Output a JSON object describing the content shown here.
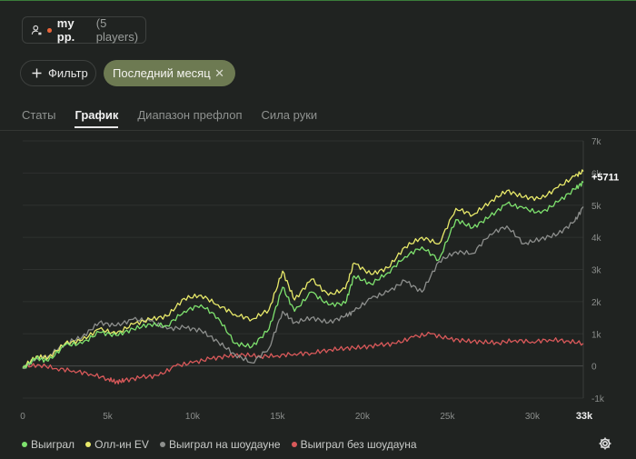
{
  "header": {
    "player_name": "my pp.",
    "player_count": "(5 players)"
  },
  "filters": {
    "filter_label": "Фильтр",
    "period_label": "Последний месяц",
    "close_glyph": "✕"
  },
  "tabs": [
    {
      "label": "Статы",
      "active": false
    },
    {
      "label": "График",
      "active": true
    },
    {
      "label": "Диапазон префлоп",
      "active": false
    },
    {
      "label": "Сила руки",
      "active": false
    }
  ],
  "colors": {
    "won": "#7ee26e",
    "allin_ev": "#e9ea6a",
    "showdown": "#8d8f8d",
    "non_showdown": "#d9595a"
  },
  "chart_data": {
    "type": "line",
    "x_ticks": [
      "0",
      "5k",
      "10k",
      "15k",
      "20k",
      "25k",
      "30k"
    ],
    "x_max_label": "33k",
    "xlim": [
      0,
      33000
    ],
    "y_ticks": [
      "7k",
      "6k",
      "5k",
      "4k",
      "3k",
      "2k",
      "1k",
      "0",
      "-1k"
    ],
    "ylim": [
      -1000,
      7000
    ],
    "end_label": "+5711",
    "series": [
      {
        "name": "Выиграл",
        "color": "#7ee26e",
        "x": [
          0,
          800,
          1500,
          2500,
          3500,
          4500,
          5500,
          6500,
          7500,
          8500,
          9500,
          10500,
          11500,
          12500,
          13500,
          14500,
          15300,
          16000,
          17000,
          18000,
          19000,
          19500,
          20500,
          21500,
          22500,
          23500,
          24500,
          25500,
          26500,
          27500,
          28500,
          29500,
          30500,
          31500,
          32500,
          33000
        ],
        "y": [
          -80,
          250,
          150,
          650,
          700,
          1050,
          950,
          1150,
          1300,
          1250,
          1700,
          1900,
          1500,
          700,
          600,
          1150,
          2450,
          1700,
          2300,
          1900,
          1950,
          2800,
          2550,
          2900,
          3400,
          3700,
          3300,
          4550,
          4300,
          4650,
          5050,
          4900,
          4750,
          5100,
          5500,
          5711
        ]
      },
      {
        "name": "Олл-ин EV",
        "color": "#e9ea6a",
        "x": [
          0,
          800,
          1500,
          2500,
          3500,
          4500,
          5500,
          6500,
          7500,
          8500,
          9500,
          10500,
          11500,
          12500,
          13500,
          14500,
          15300,
          16000,
          17000,
          18000,
          19000,
          19500,
          20500,
          21500,
          22500,
          23500,
          24500,
          25500,
          26500,
          27500,
          28500,
          29500,
          30500,
          31500,
          32500,
          33000
        ],
        "y": [
          -50,
          300,
          250,
          700,
          800,
          1150,
          1000,
          1300,
          1450,
          1550,
          2100,
          2200,
          1900,
          1600,
          1450,
          1750,
          2950,
          2050,
          2700,
          2200,
          2400,
          3200,
          2850,
          3050,
          3700,
          4000,
          3800,
          4900,
          4700,
          5100,
          5450,
          5250,
          5200,
          5550,
          5900,
          6050
        ]
      },
      {
        "name": "Выиграл на шоудауне",
        "color": "#8d8f8d",
        "x": [
          0,
          800,
          1500,
          2500,
          3500,
          4500,
          5500,
          6500,
          7500,
          8500,
          9500,
          10500,
          11500,
          12500,
          13500,
          14500,
          15300,
          16000,
          17000,
          18000,
          19000,
          19500,
          20500,
          21500,
          22500,
          23500,
          24500,
          25500,
          26500,
          27500,
          28500,
          29500,
          30500,
          31500,
          32500,
          33000
        ],
        "y": [
          -60,
          250,
          300,
          700,
          900,
          1350,
          1250,
          1450,
          1400,
          1150,
          1200,
          1100,
          750,
          350,
          100,
          550,
          1700,
          1350,
          1500,
          1350,
          1550,
          1700,
          2100,
          2300,
          2650,
          2300,
          3250,
          3550,
          3500,
          4100,
          4350,
          3800,
          3950,
          4100,
          4500,
          4950
        ]
      },
      {
        "name": "Выиграл без шоудауна",
        "color": "#d9595a",
        "x": [
          0,
          1000,
          2000,
          3000,
          4000,
          5000,
          5500,
          6000,
          7000,
          8000,
          9000,
          10000,
          11000,
          12000,
          13000,
          14000,
          15000,
          16000,
          17000,
          18000,
          19000,
          20000,
          21000,
          22000,
          23000,
          24000,
          25000,
          26000,
          27000,
          28000,
          29000,
          30000,
          31000,
          32000,
          33000
        ],
        "y": [
          -20,
          30,
          -80,
          -150,
          -250,
          -400,
          -500,
          -450,
          -350,
          -300,
          0,
          100,
          220,
          300,
          350,
          300,
          320,
          380,
          400,
          500,
          550,
          580,
          650,
          700,
          900,
          1000,
          850,
          780,
          750,
          720,
          800,
          750,
          820,
          780,
          700
        ]
      }
    ]
  },
  "legend": [
    {
      "label": "Выиграл",
      "color": "#7ee26e"
    },
    {
      "label": "Олл-ин EV",
      "color": "#e9ea6a"
    },
    {
      "label": "Выиграл на шоудауне",
      "color": "#8d8f8d"
    },
    {
      "label": "Выиграл без шоудауна",
      "color": "#d9595a"
    }
  ]
}
